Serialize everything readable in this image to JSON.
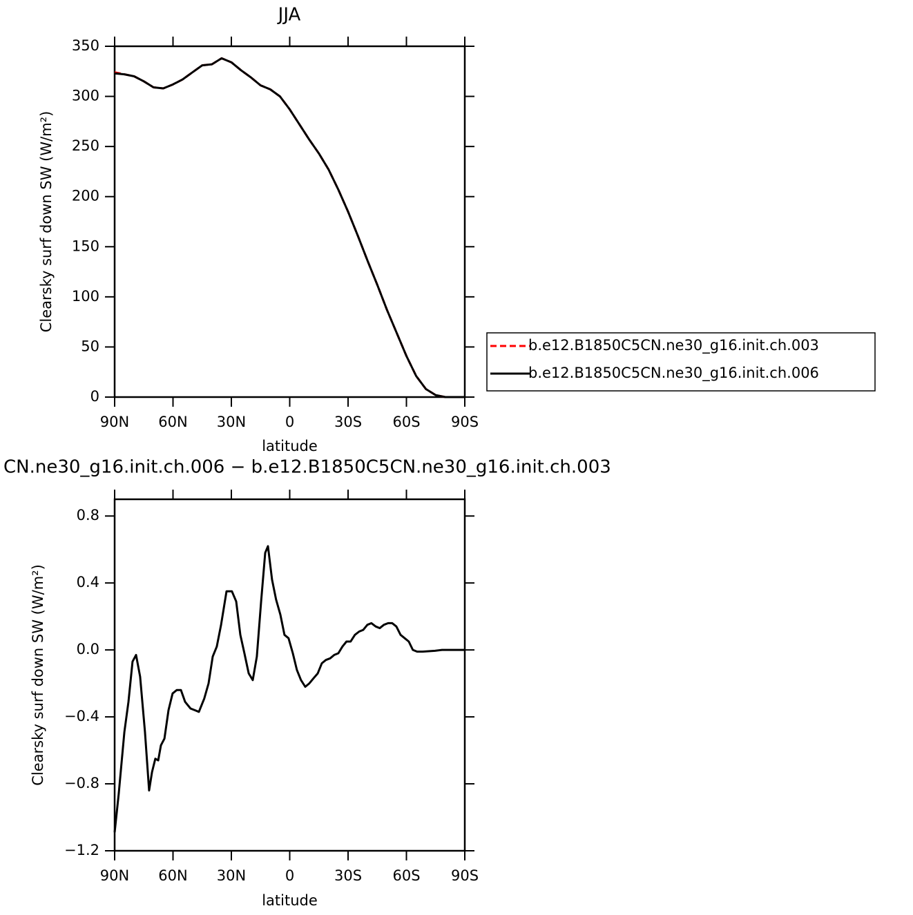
{
  "chart_data": [
    {
      "type": "line",
      "title": "JJA",
      "xlabel": "latitude",
      "ylabel": "Clearsky surf down SW (W/m²)",
      "xlim": [
        90,
        -90
      ],
      "ylim": [
        0,
        350
      ],
      "xticks": [
        {
          "value": 90,
          "label": "90N"
        },
        {
          "value": 60,
          "label": "60N"
        },
        {
          "value": 30,
          "label": "30N"
        },
        0,
        {
          "value": -30,
          "label": "30S"
        },
        {
          "value": -60,
          "label": "60S"
        },
        {
          "value": -90,
          "label": "90S"
        }
      ],
      "yticks": [
        0,
        50,
        100,
        150,
        200,
        250,
        300,
        350
      ],
      "legend": "right",
      "x": [
        90,
        85,
        80,
        75,
        70,
        65,
        60,
        55,
        50,
        45,
        40,
        35,
        30,
        25,
        20,
        15,
        10,
        5,
        0,
        -5,
        -10,
        -15,
        -20,
        -25,
        -30,
        -35,
        -40,
        -45,
        -50,
        -55,
        -60,
        -65,
        -70,
        -75,
        -80,
        -85,
        -90
      ],
      "series": [
        {
          "name": "b.e12.B1850C5CN.ne30_g16.init.ch.003",
          "color": "#ff0000",
          "linestyle": "dashed",
          "values": [
            324,
            322,
            320,
            315,
            309,
            308,
            312,
            317,
            324,
            331,
            332,
            338,
            334,
            326,
            319,
            311,
            307,
            300,
            287,
            272,
            257,
            243,
            227,
            207,
            185,
            161,
            136,
            112,
            87,
            64,
            41,
            21,
            8,
            2,
            0,
            0,
            0
          ]
        },
        {
          "name": "b.e12.B1850C5CN.ne30_g16.init.ch.006",
          "color": "#000000",
          "linestyle": "solid",
          "values": [
            323,
            322,
            320,
            315,
            309,
            308,
            312,
            317,
            324,
            331,
            332,
            338,
            334,
            326,
            319,
            311,
            307,
            300,
            287,
            272,
            257,
            243,
            227,
            207,
            185,
            161,
            136,
            112,
            87,
            64,
            41,
            21,
            8,
            2,
            0,
            0,
            0
          ]
        }
      ]
    },
    {
      "type": "line",
      "title": "CN.ne30_g16.init.ch.006 − b.e12.B1850C5CN.ne30_g16.init.ch.003",
      "xlabel": "latitude",
      "ylabel": "Clearsky surf down SW (W/m²)",
      "xlim": [
        90,
        -90
      ],
      "ylim": [
        -1.2,
        0.9
      ],
      "xticks": [
        {
          "value": 90,
          "label": "90N"
        },
        {
          "value": 60,
          "label": "60N"
        },
        {
          "value": 30,
          "label": "30N"
        },
        0,
        {
          "value": -30,
          "label": "30S"
        },
        {
          "value": -60,
          "label": "60S"
        },
        {
          "value": -90,
          "label": "90S"
        }
      ],
      "yticks": [
        {
          "value": -1.2,
          "label": "−1.2"
        },
        {
          "value": -0.8,
          "label": "−0.8"
        },
        {
          "value": -0.4,
          "label": "−0.4"
        },
        {
          "value": 0,
          "label": "0.0"
        },
        0.4,
        0.8
      ],
      "x": [
        90,
        87.9,
        85,
        82.9,
        80.8,
        79,
        76.9,
        74.4,
        72.3,
        70.8,
        69.1,
        67.6,
        66.2,
        64.4,
        62.3,
        60.2,
        58.1,
        55.9,
        53.8,
        51,
        48.8,
        46.7,
        43.9,
        41.7,
        39.6,
        37.5,
        35.3,
        32.5,
        29.7,
        27.5,
        25.4,
        23.3,
        21.1,
        19,
        16.9,
        14.7,
        12.6,
        11.2,
        9.1,
        7,
        4.8,
        2.7,
        0.6,
        -1.6,
        -3.7,
        -5.8,
        -8,
        -10.1,
        -12.2,
        -14.4,
        -16.5,
        -18.6,
        -20.8,
        -22.9,
        -25,
        -27.1,
        -29.2,
        -31.3,
        -33.5,
        -35.7,
        -37.8,
        -39.9,
        -42,
        -44.2,
        -46.3,
        -48.4,
        -50.6,
        -52.7,
        -54.8,
        -57,
        -59.1,
        -61.2,
        -63.3,
        -65.5,
        -68.3,
        -74.7,
        -78.3,
        -90
      ],
      "series": [
        {
          "color": "#000000",
          "linestyle": "solid",
          "values": [
            -1.09,
            -0.86,
            -0.49,
            -0.31,
            -0.07,
            -0.03,
            -0.16,
            -0.49,
            -0.84,
            -0.73,
            -0.65,
            -0.66,
            -0.57,
            -0.53,
            -0.36,
            -0.26,
            -0.24,
            -0.24,
            -0.31,
            -0.35,
            -0.36,
            -0.37,
            -0.29,
            -0.2,
            -0.04,
            0.02,
            0.15,
            0.35,
            0.35,
            0.29,
            0.09,
            -0.02,
            -0.14,
            -0.18,
            -0.04,
            0.29,
            0.58,
            0.62,
            0.42,
            0.3,
            0.21,
            0.09,
            0.07,
            -0.02,
            -0.12,
            -0.18,
            -0.22,
            -0.2,
            -0.17,
            -0.14,
            -0.08,
            -0.06,
            -0.05,
            -0.03,
            -0.02,
            0.02,
            0.05,
            0.05,
            0.09,
            0.11,
            0.12,
            0.15,
            0.16,
            0.14,
            0.13,
            0.15,
            0.16,
            0.16,
            0.14,
            0.09,
            0.07,
            0.05,
            0,
            -0.01,
            -0.01,
            -0.005,
            0,
            0
          ]
        }
      ]
    }
  ]
}
